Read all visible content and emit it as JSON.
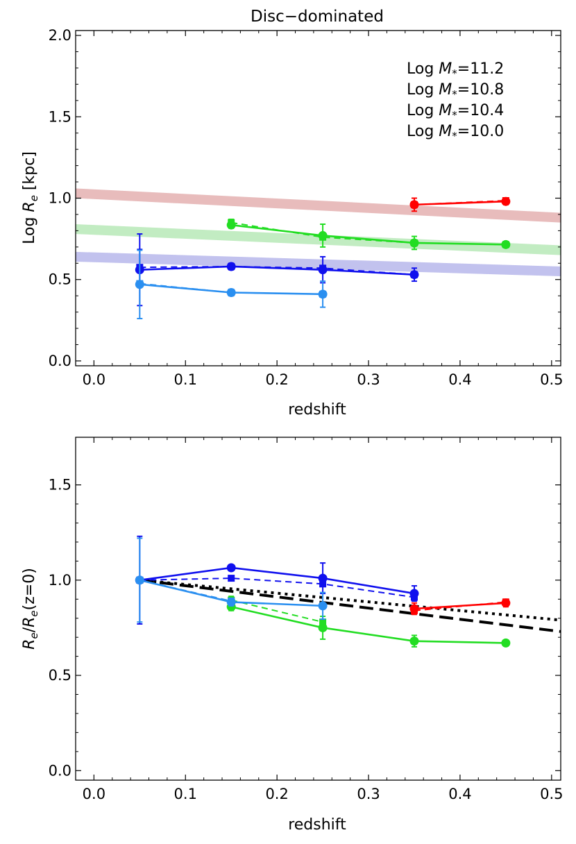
{
  "chart_data": [
    {
      "type": "line",
      "title": "Disc−dominated",
      "xlabel": "redshift",
      "ylabel_prefix": "Log ",
      "ylabel_var": "R",
      "ylabel_sub": "e",
      "ylabel_suffix": " [kpc]",
      "xlim": [
        -0.02,
        0.51
      ],
      "ylim": [
        -0.03,
        2.03
      ],
      "xticks": [
        0.0,
        0.1,
        0.2,
        0.3,
        0.4,
        0.5
      ],
      "xtick_labels": [
        "0.0",
        "0.1",
        "0.2",
        "0.3",
        "0.4",
        "0.5"
      ],
      "yticks": [
        0.0,
        0.5,
        1.0,
        1.5,
        2.0
      ],
      "ytick_labels": [
        "0.0",
        "0.5",
        "1.0",
        "1.5",
        "2.0"
      ],
      "legend": [
        {
          "prefix": "Log ",
          "var": "M",
          "sub": "*",
          "value": "=11.2",
          "color": "#ff0000"
        },
        {
          "prefix": "Log ",
          "var": "M",
          "sub": "*",
          "value": "=10.8",
          "color": "#22dd22"
        },
        {
          "prefix": "Log ",
          "var": "M",
          "sub": "*",
          "value": "=10.4",
          "color": "#1010ee"
        },
        {
          "prefix": "Log ",
          "var": "M",
          "sub": "*",
          "value": "=10.0",
          "color": "#2a8ff0"
        }
      ],
      "bands": [
        {
          "name": "11.2",
          "color": "#e8bcbc",
          "x": [
            -0.02,
            0.51
          ],
          "y": [
            1.03,
            0.88
          ],
          "width": 0.06
        },
        {
          "name": "10.8",
          "color": "#c2ecc2",
          "x": [
            -0.02,
            0.51
          ],
          "y": [
            0.81,
            0.68
          ],
          "width": 0.06
        },
        {
          "name": "10.4",
          "color": "#c2c2ee",
          "x": [
            -0.02,
            0.51
          ],
          "y": [
            0.64,
            0.55
          ],
          "width": 0.06
        }
      ],
      "series": [
        {
          "name": "Log M*=11.2 circles",
          "color": "#ff0000",
          "marker": "circle",
          "dash": "",
          "x": [
            0.35,
            0.45
          ],
          "y": [
            0.96,
            0.98
          ],
          "err": [
            0.04,
            0.02
          ]
        },
        {
          "name": "Log M*=11.2 squares",
          "color": "#ff0000",
          "marker": "square",
          "dash": "9,6",
          "x": [
            0.35,
            0.45
          ],
          "y": [
            0.96,
            0.985
          ],
          "err": [
            0,
            0
          ]
        },
        {
          "name": "Log M*=10.8 circles",
          "color": "#22dd22",
          "marker": "circle",
          "dash": "",
          "x": [
            0.15,
            0.25,
            0.35,
            0.45
          ],
          "y": [
            0.835,
            0.77,
            0.725,
            0.715
          ],
          "err": [
            0.02,
            0.07,
            0.04,
            0.015
          ]
        },
        {
          "name": "Log M*=10.8 squares",
          "color": "#22dd22",
          "marker": "square",
          "dash": "9,6",
          "x": [
            0.15,
            0.25,
            0.35,
            0.45
          ],
          "y": [
            0.85,
            0.76,
            0.725,
            0.715
          ],
          "err": [
            0.02,
            0,
            0,
            0
          ]
        },
        {
          "name": "Log M*=10.4 circles",
          "color": "#1010ee",
          "marker": "circle",
          "dash": "",
          "x": [
            0.05,
            0.15,
            0.25,
            0.35
          ],
          "y": [
            0.56,
            0.58,
            0.56,
            0.53
          ],
          "err": [
            0.22,
            0.02,
            0.08,
            0.04
          ]
        },
        {
          "name": "Log M*=10.4 squares",
          "color": "#1010ee",
          "marker": "square",
          "dash": "9,6",
          "x": [
            0.05,
            0.15,
            0.25,
            0.35
          ],
          "y": [
            0.575,
            0.58,
            0.57,
            0.53
          ],
          "err": [
            0.11,
            0,
            0,
            0
          ]
        },
        {
          "name": "Log M*=10.0 circles",
          "color": "#2a8ff0",
          "marker": "circle",
          "dash": "",
          "x": [
            0.05,
            0.15,
            0.25
          ],
          "y": [
            0.47,
            0.42,
            0.41
          ],
          "err": [
            0.21,
            0.02,
            0.08
          ]
        },
        {
          "name": "Log M*=10.0 squares",
          "color": "#2a8ff0",
          "marker": "square",
          "dash": "9,6",
          "x": [
            0.05,
            0.15,
            0.25
          ],
          "y": [
            0.475,
            0.42,
            0.41
          ],
          "err": [
            0,
            0,
            0
          ]
        }
      ]
    },
    {
      "type": "line",
      "title": "",
      "xlabel": "redshift",
      "ylabel_var": "R",
      "ylabel_sub": "e",
      "ylabel_slash": "/",
      "ylabel_var2": "R",
      "ylabel_sub2": "e",
      "ylabel_suffix": "(z=0)",
      "xlim": [
        -0.02,
        0.51
      ],
      "ylim": [
        -0.05,
        1.75
      ],
      "xticks": [
        0.0,
        0.1,
        0.2,
        0.3,
        0.4,
        0.5
      ],
      "xtick_labels": [
        "0.0",
        "0.1",
        "0.2",
        "0.3",
        "0.4",
        "0.5"
      ],
      "yticks": [
        0.0,
        0.5,
        1.0,
        1.5
      ],
      "ytick_labels": [
        "0.0",
        "0.5",
        "1.0",
        "1.5"
      ],
      "reference_lines": [
        {
          "name": "black-dashed",
          "color": "#000000",
          "dash": "20,9",
          "width": 4,
          "x": [
            0.05,
            0.51
          ],
          "y": [
            1.0,
            0.73
          ]
        },
        {
          "name": "black-dotted",
          "color": "#000000",
          "dash": "4,6",
          "width": 4,
          "x": [
            0.05,
            0.51
          ],
          "y": [
            1.0,
            0.79
          ]
        }
      ],
      "series": [
        {
          "name": "Log M*=11.2 circles",
          "color": "#ff0000",
          "marker": "circle",
          "dash": "",
          "x": [
            0.35,
            0.45
          ],
          "y": [
            0.85,
            0.88
          ],
          "err": [
            0.03,
            0.02
          ]
        },
        {
          "name": "Log M*=11.2 squares",
          "color": "#ff0000",
          "marker": "square",
          "dash": "9,6",
          "x": [
            0.35,
            0.45
          ],
          "y": [
            0.84,
            0.885
          ],
          "err": [
            0,
            0
          ]
        },
        {
          "name": "Log M*=10.8 circles",
          "color": "#22dd22",
          "marker": "circle",
          "dash": "",
          "x": [
            0.15,
            0.25,
            0.35,
            0.45
          ],
          "y": [
            0.86,
            0.75,
            0.68,
            0.67
          ],
          "err": [
            0.02,
            0.06,
            0.03,
            0.015
          ]
        },
        {
          "name": "Log M*=10.8 squares",
          "color": "#22dd22",
          "marker": "square",
          "dash": "9,6",
          "x": [
            0.15,
            0.25
          ],
          "y": [
            0.895,
            0.78
          ],
          "err": [
            0.02,
            0
          ]
        },
        {
          "name": "Log M*=10.4 circles",
          "color": "#1010ee",
          "marker": "circle",
          "dash": "",
          "x": [
            0.05,
            0.15,
            0.25,
            0.35
          ],
          "y": [
            1.0,
            1.065,
            1.01,
            0.93
          ],
          "err": [
            0.23,
            0.015,
            0.08,
            0.04
          ]
        },
        {
          "name": "Log M*=10.4 squares",
          "color": "#1010ee",
          "marker": "square",
          "dash": "9,6",
          "x": [
            0.05,
            0.15,
            0.25,
            0.35
          ],
          "y": [
            1.0,
            1.01,
            0.98,
            0.91
          ],
          "err": [
            0,
            0,
            0,
            0
          ]
        },
        {
          "name": "Log M*=10.0 circles",
          "color": "#2a8ff0",
          "marker": "circle",
          "dash": "",
          "x": [
            0.05,
            0.15,
            0.25
          ],
          "y": [
            1.0,
            0.885,
            0.865
          ],
          "err": [
            0.22,
            0.02,
            0.07
          ]
        },
        {
          "name": "Log M*=10.0 squares",
          "color": "#2a8ff0",
          "marker": "square",
          "dash": "9,6",
          "x": [
            0.05,
            0.15
          ],
          "y": [
            1.0,
            0.89
          ],
          "err": [
            0,
            0
          ]
        }
      ]
    }
  ]
}
